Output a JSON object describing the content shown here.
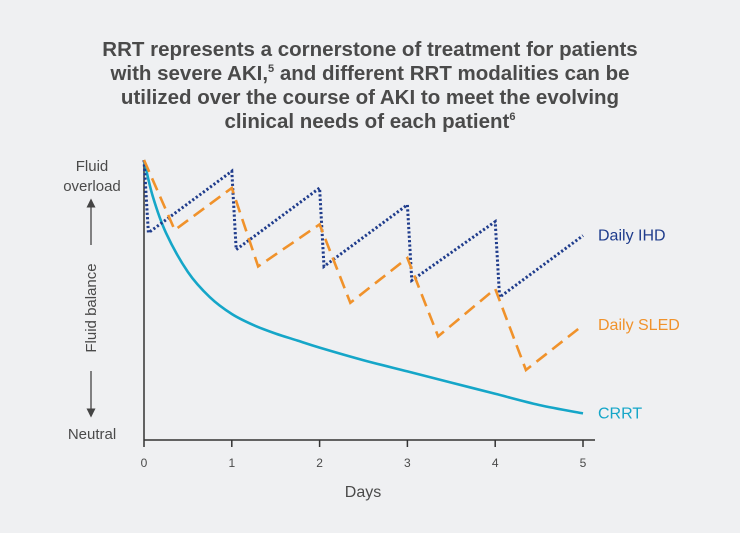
{
  "title": {
    "line1": "RRT represents a cornerstone of treatment for patients",
    "line2a": "with severe AKI,",
    "line2_sup": "5",
    "line2b": " and different RRT modalities can be",
    "line3": "utilized over the course of AKI to meet the evolving",
    "line4": "clinical needs of each patient",
    "line4_sup": "6"
  },
  "chart_data": {
    "type": "line",
    "xlabel": "Days",
    "ylabel": "Fluid balance",
    "y_top_label_1": "Fluid",
    "y_top_label_2": "overload",
    "y_bottom_label": "Neutral",
    "x_ticks": [
      "0",
      "1",
      "2",
      "3",
      "4",
      "5"
    ],
    "xlim": [
      0,
      5
    ],
    "ylim": [
      0,
      100
    ],
    "series": [
      {
        "name": "Daily IHD",
        "style": "dotted",
        "color": "#1f3c8c",
        "x": [
          0,
          0.05,
          1,
          1.05,
          2,
          2.05,
          3,
          3.05,
          4,
          4.05,
          5
        ],
        "y": [
          100,
          74,
          96,
          68,
          90,
          62,
          84,
          57,
          78,
          51,
          73
        ]
      },
      {
        "name": "Daily SLED",
        "style": "dashed",
        "color": "#f0922b",
        "x": [
          0,
          0.35,
          1,
          1.3,
          2,
          2.35,
          3,
          3.35,
          4,
          4.35,
          5
        ],
        "y": [
          100,
          75,
          90,
          62,
          77,
          49,
          65,
          37,
          54,
          25,
          41
        ]
      },
      {
        "name": "CRRT",
        "style": "solid",
        "color": "#15a6c8",
        "x": [
          0,
          0.1,
          0.25,
          0.5,
          0.75,
          1,
          1.25,
          1.5,
          1.75,
          2,
          2.5,
          3,
          3.5,
          4,
          4.5,
          5
        ],
        "y": [
          100,
          87,
          74,
          60,
          51,
          45,
          41,
          38,
          35.5,
          33,
          28.5,
          24.5,
          20.5,
          16.5,
          12.5,
          9.5
        ]
      }
    ]
  }
}
